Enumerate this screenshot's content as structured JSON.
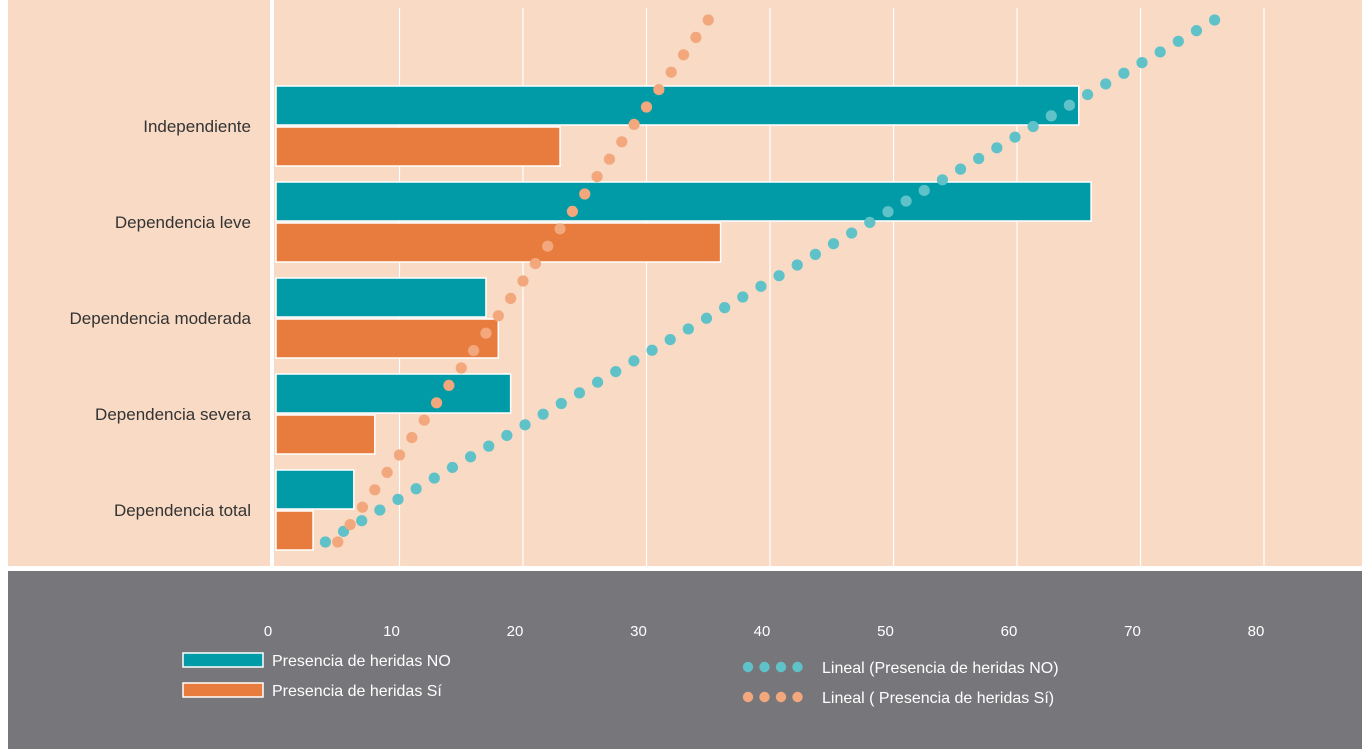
{
  "chart_data": {
    "type": "bar",
    "orientation": "horizontal",
    "categories": [
      "Independiente",
      "Dependencia leve",
      "Dependencia moderada",
      "Dependencia severa",
      "Dependencia total"
    ],
    "series": [
      {
        "name": "Presencia de heridas NO",
        "values": [
          65,
          66,
          17,
          19,
          6.3
        ],
        "color": "#009ba6"
      },
      {
        "name": "Presencia de heridas Sí",
        "values": [
          23,
          36,
          18,
          8,
          3
        ],
        "color": "#e87c3e"
      }
    ],
    "trendlines": [
      {
        "name": "Lineal (Presencia de heridas NO)",
        "from": [
          4,
          "Dependencia total"
        ],
        "to": [
          76,
          "Independiente"
        ],
        "color": "#5fc2c9"
      },
      {
        "name": "Lineal ( Presencia de heridas Sí)",
        "from": [
          5,
          "Dependencia total"
        ],
        "to": [
          35,
          "Independiente"
        ],
        "color": "#f2a77c"
      }
    ],
    "x_ticks": [
      0,
      10,
      20,
      30,
      40,
      50,
      60,
      70,
      80
    ],
    "xlim": [
      -10,
      88
    ],
    "grid": true,
    "legend_position": "bottom",
    "colors": {
      "plot_background": "#f8dac5",
      "axis_band": "#77777b",
      "gridline": "#ffffff"
    }
  }
}
